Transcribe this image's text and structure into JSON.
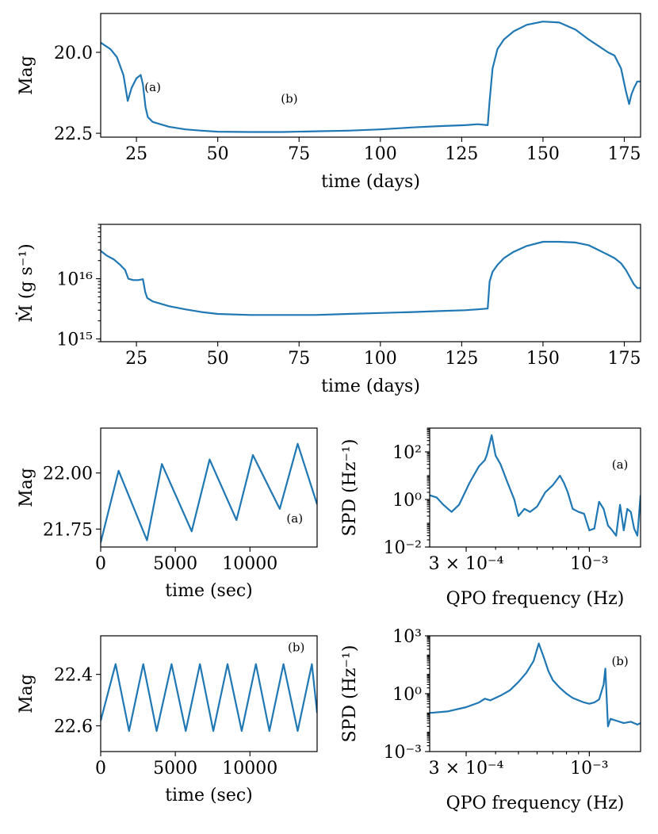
{
  "colors": {
    "series": "#1f77b4",
    "axes": "#000000"
  },
  "chart_data": [
    {
      "type": "line",
      "ylabel": "Mag",
      "xlabel": "time (days)",
      "xlim": [
        14,
        180
      ],
      "ylim": [
        22.62,
        18.8
      ],
      "y_inverted": true,
      "xticks": [
        25,
        50,
        75,
        100,
        125,
        150,
        175
      ],
      "xtick_labels": [
        "25",
        "50",
        "75",
        "100",
        "125",
        "150",
        "175"
      ],
      "yticks": [
        20.0,
        22.5
      ],
      "ytick_labels": [
        "20.0",
        "22.5"
      ],
      "annotations": [
        {
          "text": "(a)",
          "x": 30,
          "y": 21.2
        },
        {
          "text": "(b)",
          "x": 72,
          "y": 21.55
        }
      ],
      "series": [
        {
          "x": [
            14,
            17,
            19,
            21,
            22.3,
            23.5,
            25,
            26.3,
            27,
            27.8,
            28.5,
            30,
            35,
            40,
            45,
            50,
            60,
            70,
            80,
            90,
            100,
            110,
            118,
            126,
            130,
            133,
            133.6,
            134.5,
            136,
            138,
            141,
            145,
            150,
            155,
            160,
            164,
            167,
            170,
            172,
            174,
            175.5,
            176.5,
            177.2,
            178,
            179,
            180
          ],
          "y": [
            19.7,
            19.9,
            20.15,
            20.7,
            21.5,
            21.1,
            20.8,
            20.7,
            21.0,
            21.7,
            22.0,
            22.15,
            22.3,
            22.38,
            22.42,
            22.45,
            22.46,
            22.46,
            22.44,
            22.42,
            22.38,
            22.32,
            22.28,
            22.25,
            22.22,
            22.25,
            21.5,
            20.5,
            19.9,
            19.6,
            19.35,
            19.15,
            19.05,
            19.08,
            19.3,
            19.6,
            19.8,
            20.0,
            20.1,
            20.5,
            21.2,
            21.6,
            21.3,
            21.1,
            20.9,
            20.9
          ]
        }
      ]
    },
    {
      "type": "line",
      "ylabel": "Ṁ (g s⁻¹)",
      "xlabel": "time (days)",
      "xlim": [
        14,
        180
      ],
      "ylim": [
        900000000000000.0,
        8e+16
      ],
      "yscale": "log",
      "xticks": [
        25,
        50,
        75,
        100,
        125,
        150,
        175
      ],
      "xtick_labels": [
        "25",
        "50",
        "75",
        "100",
        "125",
        "150",
        "175"
      ],
      "yticks": [
        1000000000000000.0,
        1e+16
      ],
      "ytick_labels": [
        "10¹⁵",
        "10¹⁶"
      ],
      "series": [
        {
          "x": [
            14,
            16,
            18,
            20,
            21.5,
            22.5,
            24,
            25.5,
            27,
            27.7,
            28.3,
            30,
            35,
            40,
            45,
            50,
            60,
            70,
            80,
            90,
            100,
            110,
            118,
            126,
            130,
            133,
            133.6,
            134.5,
            136,
            138,
            141,
            145,
            150,
            155,
            160,
            164,
            167,
            170,
            172,
            174,
            175.5,
            177,
            178,
            179,
            180
          ],
          "y": [
            2.9e+16,
            2.4e+16,
            2.1e+16,
            1.7e+16,
            1.4e+16,
            1e+16,
            9500000000000000.0,
            9500000000000000.0,
            9800000000000000.0,
            6000000000000000.0,
            4800000000000000.0,
            4200000000000000.0,
            3500000000000000.0,
            3100000000000000.0,
            2800000000000000.0,
            2600000000000000.0,
            2500000000000000.0,
            2500000000000000.0,
            2500000000000000.0,
            2600000000000000.0,
            2700000000000000.0,
            2800000000000000.0,
            2900000000000000.0,
            3000000000000000.0,
            3100000000000000.0,
            3200000000000000.0,
            9000000000000000.0,
            1.3e+16,
            1.7e+16,
            2.2e+16,
            2.8e+16,
            3.5e+16,
            4.1e+16,
            4.1e+16,
            4e+16,
            3.6e+16,
            3e+16,
            2.5e+16,
            2.2e+16,
            1.8e+16,
            1.4e+16,
            1e+16,
            8000000000000000.0,
            7000000000000000.0,
            7000000000000000.0
          ]
        }
      ]
    },
    {
      "type": "line",
      "ylabel": "Mag",
      "xlabel": "time (sec)",
      "xlim": [
        0,
        14500
      ],
      "ylim": [
        21.67,
        22.2
      ],
      "y_inverted": true,
      "xticks": [
        0,
        5000,
        10000
      ],
      "xtick_labels": [
        "0",
        "5000",
        "10000"
      ],
      "yticks": [
        21.75,
        22.0
      ],
      "ytick_labels": [
        "21.75",
        "22.00"
      ],
      "annotations": [
        {
          "text": "(a)",
          "x": 13000,
          "y": 21.78
        }
      ],
      "series": [
        {
          "x": [
            0,
            1200,
            3100,
            4100,
            6100,
            7300,
            9100,
            10200,
            12000,
            13200,
            14500
          ],
          "y": [
            21.69,
            22.01,
            21.7,
            22.04,
            21.74,
            22.06,
            21.79,
            22.08,
            21.84,
            22.13,
            21.86
          ]
        }
      ]
    },
    {
      "type": "line",
      "ylabel": "SPD (Hz⁻¹)",
      "xlabel": "QPO frequency (Hz)",
      "xlim": [
        0.00021,
        0.00165
      ],
      "xscale": "log",
      "ylim": [
        0.01,
        1000
      ],
      "yscale": "log",
      "xticks": [
        0.0003,
        0.001
      ],
      "xtick_labels": [
        "3 × 10⁻⁴",
        "10⁻³"
      ],
      "yticks": [
        0.01,
        1,
        100
      ],
      "ytick_labels": [
        "10⁻²",
        "10⁰",
        "10²"
      ],
      "annotations": [
        {
          "text": "(a)",
          "x": 0.00135,
          "y": 20
        }
      ],
      "series": [
        {
          "x": [
            0.00021,
            0.000225,
            0.00024,
            0.00026,
            0.00028,
            0.00031,
            0.00034,
            0.00036,
            0.000368,
            0.000385,
            0.0004,
            0.00042,
            0.00045,
            0.00048,
            0.0005,
            0.00053,
            0.00056,
            0.0006,
            0.00065,
            0.0007,
            0.00075,
            0.00078,
            0.00081,
            0.00085,
            0.0009,
            0.00095,
            0.001,
            0.00105,
            0.0011,
            0.00115,
            0.0012,
            0.00125,
            0.0013,
            0.00135,
            0.0014,
            0.00145,
            0.0015,
            0.00155,
            0.0016,
            0.00165
          ],
          "y": [
            1.5,
            1.2,
            0.6,
            0.3,
            0.6,
            5,
            25,
            45,
            80,
            500,
            70,
            30,
            5,
            1,
            0.2,
            0.4,
            0.3,
            0.5,
            2,
            4,
            10,
            5,
            2,
            0.4,
            0.3,
            0.25,
            0.05,
            0.06,
            0.8,
            0.4,
            0.08,
            0.05,
            0.03,
            0.6,
            0.05,
            0.4,
            0.3,
            0.06,
            0.03,
            1.5
          ]
        }
      ]
    },
    {
      "type": "line",
      "ylabel": "Mag",
      "xlabel": "time (sec)",
      "xlim": [
        0,
        14500
      ],
      "ylim": [
        22.7,
        22.25
      ],
      "y_inverted": true,
      "xticks": [
        0,
        5000,
        10000
      ],
      "xtick_labels": [
        "0",
        "5000",
        "10000"
      ],
      "yticks": [
        22.4,
        22.6
      ],
      "ytick_labels": [
        "22.4",
        "22.6"
      ],
      "annotations": [
        {
          "text": "(b)",
          "x": 13100,
          "y": 22.31
        }
      ],
      "series": [
        {
          "x": [
            0,
            1000,
            1900,
            2850,
            3750,
            4750,
            5700,
            6650,
            7550,
            8500,
            9450,
            10400,
            11300,
            12250,
            13200,
            14150,
            14500
          ],
          "y": [
            22.58,
            22.36,
            22.62,
            22.36,
            22.62,
            22.36,
            22.62,
            22.36,
            22.62,
            22.36,
            22.62,
            22.36,
            22.62,
            22.36,
            22.62,
            22.36,
            22.55
          ]
        }
      ]
    },
    {
      "type": "line",
      "ylabel": "SPD (Hz⁻¹)",
      "xlabel": "QPO frequency (Hz)",
      "xlim": [
        0.00021,
        0.00165
      ],
      "xscale": "log",
      "ylim": [
        0.001,
        1000
      ],
      "yscale": "log",
      "xticks": [
        0.0003,
        0.001
      ],
      "xtick_labels": [
        "3 × 10⁻⁴",
        "10⁻³"
      ],
      "yticks": [
        0.001,
        1,
        1000
      ],
      "ytick_labels": [
        "10⁻³",
        "10⁰",
        "10³"
      ],
      "annotations": [
        {
          "text": "(b)",
          "x": 0.00135,
          "y": 30
        }
      ],
      "series": [
        {
          "x": [
            0.00021,
            0.00025,
            0.0003,
            0.00034,
            0.00036,
            0.00038,
            0.00042,
            0.00046,
            0.0005,
            0.00054,
            0.00058,
            0.00061,
            0.00064,
            0.00067,
            0.0007,
            0.00075,
            0.0008,
            0.00085,
            0.0009,
            0.00095,
            0.001,
            0.00105,
            0.0011,
            0.00115,
            0.00117,
            0.0012,
            0.00123,
            0.0013,
            0.0014,
            0.0015,
            0.0016,
            0.00165
          ],
          "y": [
            0.1,
            0.12,
            0.2,
            0.35,
            0.55,
            0.45,
            0.8,
            1.5,
            4,
            12,
            50,
            400,
            80,
            15,
            5,
            2,
            1,
            0.6,
            0.45,
            0.35,
            0.3,
            0.35,
            0.5,
            3,
            20,
            0.02,
            0.05,
            0.04,
            0.03,
            0.035,
            0.025,
            0.03
          ]
        }
      ]
    }
  ]
}
